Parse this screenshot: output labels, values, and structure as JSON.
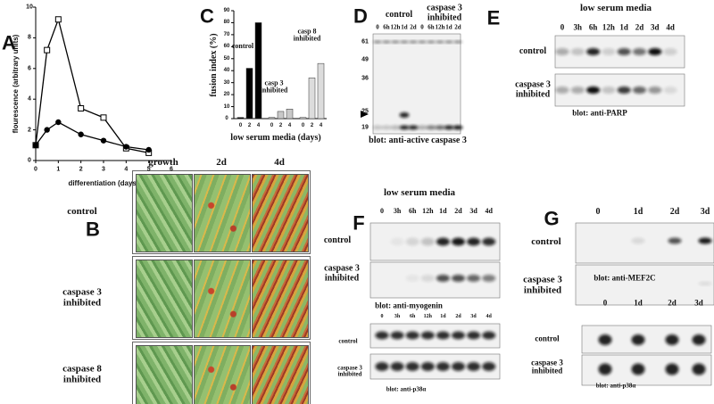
{
  "chart_data": [
    {
      "panel": "A",
      "type": "line",
      "x_label": "differentiation (days)",
      "y_label": "flourescence (arbitrary units)",
      "x": [
        0,
        0.5,
        1,
        2,
        3,
        4,
        5
      ],
      "series": [
        {
          "marker": "square",
          "color": "#000000",
          "values": [
            1,
            7.2,
            9.2,
            3.4,
            2.8,
            0.8,
            0.5
          ]
        },
        {
          "marker": "circle",
          "color": "#000000",
          "values": [
            1,
            2,
            2.5,
            1.7,
            1.3,
            0.9,
            0.7
          ]
        }
      ],
      "xlim": [
        0,
        6
      ],
      "ylim": [
        0,
        10
      ],
      "xticks": [
        0,
        1,
        2,
        3,
        4,
        5,
        6
      ],
      "yticks": [
        0,
        2,
        4,
        6,
        8,
        10
      ]
    },
    {
      "panel": "C",
      "type": "bar",
      "y_label": "fusion index (%)",
      "x_label": "low serum media (days)",
      "categories": [
        "0",
        "2",
        "4",
        "0",
        "2",
        "4",
        "0",
        "2",
        "4"
      ],
      "values": [
        1,
        42,
        80,
        1,
        6,
        8,
        1,
        34,
        46
      ],
      "colors": [
        "#000000",
        "#000000",
        "#000000",
        "#c8c8c8",
        "#c8c8c8",
        "#c8c8c8",
        "#dcdcdc",
        "#dcdcdc",
        "#dcdcdc"
      ],
      "annotations": [
        "control",
        "casp 3 inhibited",
        "casp 8 inhibited"
      ],
      "ylim": [
        0,
        90
      ],
      "yticks": [
        0,
        10,
        20,
        30,
        40,
        50,
        60,
        70,
        80,
        90
      ]
    }
  ],
  "micrographs": {
    "panel": "B",
    "columns": [
      "growth",
      "2d",
      "4d"
    ],
    "rows": [
      "control",
      "caspase 3 inhibited",
      "caspase 8 inhibited"
    ]
  },
  "blots": [
    {
      "panel": "D",
      "groups": [
        "control",
        "caspase 3 inhibited"
      ],
      "lanes": [
        "0",
        "6h",
        "12h",
        "1d",
        "2d",
        "0",
        "6h",
        "12h",
        "1d",
        "2d"
      ],
      "markers": [
        61,
        49,
        36,
        25,
        19
      ],
      "caption": "blot: anti-active caspase 3"
    },
    {
      "panel": "E",
      "title": "low serum media",
      "lanes": [
        "0",
        "3h",
        "6h",
        "12h",
        "1d",
        "2d",
        "3d",
        "4d"
      ],
      "rows": [
        "control",
        "caspase 3 inhibited"
      ],
      "caption": "blot: anti-PARP"
    },
    {
      "panel": "F",
      "title": "low serum media",
      "lanes": [
        "0",
        "3h",
        "6h",
        "12h",
        "1d",
        "2d",
        "3d",
        "4d"
      ],
      "rows": [
        "control",
        "caspase 3 inhibited"
      ],
      "caption": "blot: anti-myogenin",
      "loading": {
        "lanes": [
          "0",
          "3h",
          "6h",
          "12h",
          "1d",
          "2d",
          "3d",
          "4d"
        ],
        "rows": [
          "control",
          "caspase 3 inhibited"
        ],
        "caption": "blot: anti-p38α"
      }
    },
    {
      "panel": "G",
      "lanes": [
        "0",
        "1d",
        "2d",
        "3d"
      ],
      "rows": [
        "control",
        "caspase 3 inhibited"
      ],
      "caption": "blot: anti-MEF2C",
      "loading": {
        "lanes": [
          "0",
          "1d",
          "2d",
          "3d"
        ],
        "rows": [
          "control",
          "caspase 3 inhibited"
        ],
        "caption": "blot: anti-p38α"
      }
    }
  ]
}
